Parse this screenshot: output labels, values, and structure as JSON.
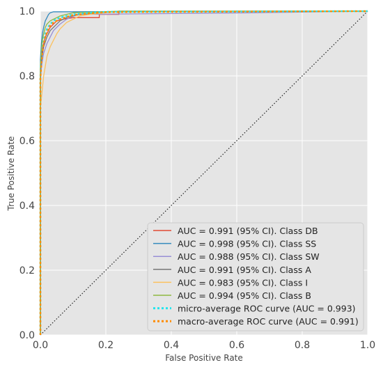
{
  "chart_data": {
    "type": "line",
    "title": "",
    "xlabel": "False Positive Rate",
    "ylabel": "True Positive Rate",
    "xlim": [
      0.0,
      1.0
    ],
    "ylim": [
      0.0,
      1.0
    ],
    "xticks": [
      "0.0",
      "0.2",
      "0.4",
      "0.6",
      "0.8",
      "1.0"
    ],
    "yticks": [
      "0.0",
      "0.2",
      "0.4",
      "0.6",
      "0.8",
      "1.0"
    ],
    "grid": true,
    "legend_position": "lower-right",
    "colors": {
      "background": "#e5e5e5",
      "grid": "#ffffff",
      "chance": "#222222"
    },
    "series": [
      {
        "name": "AUC = 0.991 (95% CI). Class DB",
        "color": "#e24a33",
        "dash": "solid",
        "x": [
          0.0,
          0.0,
          0.004,
          0.006,
          0.01,
          0.015,
          0.02,
          0.03,
          0.04,
          0.05,
          0.07,
          0.1,
          0.14,
          0.18,
          0.18,
          0.24,
          0.24,
          1.0
        ],
        "y": [
          0.0,
          0.78,
          0.85,
          0.88,
          0.9,
          0.92,
          0.93,
          0.95,
          0.96,
          0.97,
          0.975,
          0.98,
          0.98,
          0.98,
          0.99,
          0.99,
          1.0,
          1.0
        ]
      },
      {
        "name": "AUC = 0.998 (95% CI). Class SS",
        "color": "#348abd",
        "dash": "solid",
        "x": [
          0.0,
          0.0,
          0.003,
          0.006,
          0.01,
          0.015,
          0.02,
          0.025,
          0.03,
          0.04,
          0.05,
          0.66,
          1.0
        ],
        "y": [
          0.0,
          0.85,
          0.9,
          0.93,
          0.95,
          0.97,
          0.98,
          0.99,
          0.995,
          0.998,
          0.998,
          1.0,
          1.0
        ]
      },
      {
        "name": "AUC = 0.988 (95% CI). Class SW",
        "color": "#988ed5",
        "dash": "solid",
        "x": [
          0.0,
          0.0,
          0.005,
          0.01,
          0.02,
          0.03,
          0.04,
          0.05,
          0.06,
          0.08,
          0.1,
          0.12,
          0.66,
          1.0
        ],
        "y": [
          0.0,
          0.8,
          0.84,
          0.87,
          0.9,
          0.92,
          0.94,
          0.95,
          0.96,
          0.975,
          0.985,
          0.99,
          0.995,
          1.0
        ]
      },
      {
        "name": "AUC = 0.991 (95% CI). Class A",
        "color": "#777777",
        "dash": "solid",
        "x": [
          0.0,
          0.0,
          0.005,
          0.01,
          0.02,
          0.03,
          0.04,
          0.05,
          0.06,
          0.07,
          0.08,
          0.1,
          0.12,
          0.24,
          1.0
        ],
        "y": [
          0.0,
          0.82,
          0.86,
          0.89,
          0.92,
          0.94,
          0.95,
          0.96,
          0.97,
          0.975,
          0.98,
          0.985,
          0.99,
          1.0,
          1.0
        ]
      },
      {
        "name": "AUC = 0.983 (95% CI). Class I",
        "color": "#fbc15e",
        "dash": "solid",
        "x": [
          0.0,
          0.0,
          0.005,
          0.01,
          0.015,
          0.02,
          0.03,
          0.04,
          0.05,
          0.06,
          0.07,
          0.08,
          0.1,
          0.12,
          0.15,
          0.2,
          0.24,
          1.0
        ],
        "y": [
          0.0,
          0.7,
          0.75,
          0.8,
          0.83,
          0.86,
          0.89,
          0.91,
          0.93,
          0.945,
          0.955,
          0.965,
          0.975,
          0.985,
          0.99,
          0.995,
          1.0,
          1.0
        ]
      },
      {
        "name": "AUC = 0.994 (95% CI). Class B",
        "color": "#8eba42",
        "dash": "solid",
        "x": [
          0.0,
          0.0,
          0.003,
          0.006,
          0.01,
          0.015,
          0.02,
          0.03,
          0.04,
          0.05,
          0.06,
          0.08,
          0.1,
          0.24,
          1.0
        ],
        "y": [
          0.0,
          0.83,
          0.88,
          0.91,
          0.93,
          0.95,
          0.96,
          0.97,
          0.975,
          0.98,
          0.985,
          0.99,
          0.995,
          1.0,
          1.0
        ]
      },
      {
        "name": "micro-average ROC curve (AUC = 0.993)",
        "color": "#22e5ee",
        "dash": "dotted",
        "x": [
          0.0,
          0.0,
          0.003,
          0.006,
          0.01,
          0.015,
          0.02,
          0.03,
          0.04,
          0.05,
          0.06,
          0.08,
          0.1,
          0.15,
          0.2,
          1.0
        ],
        "y": [
          0.0,
          0.8,
          0.85,
          0.88,
          0.91,
          0.93,
          0.945,
          0.96,
          0.97,
          0.975,
          0.98,
          0.985,
          0.99,
          0.995,
          0.998,
          1.0
        ]
      },
      {
        "name": "macro-average ROC curve (AUC = 0.991)",
        "color": "#ff8c00",
        "dash": "dotted",
        "x": [
          0.0,
          0.0,
          0.003,
          0.006,
          0.01,
          0.015,
          0.02,
          0.03,
          0.04,
          0.05,
          0.06,
          0.08,
          0.1,
          0.15,
          0.2,
          1.0
        ],
        "y": [
          0.0,
          0.79,
          0.84,
          0.87,
          0.9,
          0.92,
          0.935,
          0.955,
          0.965,
          0.97,
          0.975,
          0.982,
          0.988,
          0.993,
          0.997,
          1.0
        ]
      }
    ]
  }
}
